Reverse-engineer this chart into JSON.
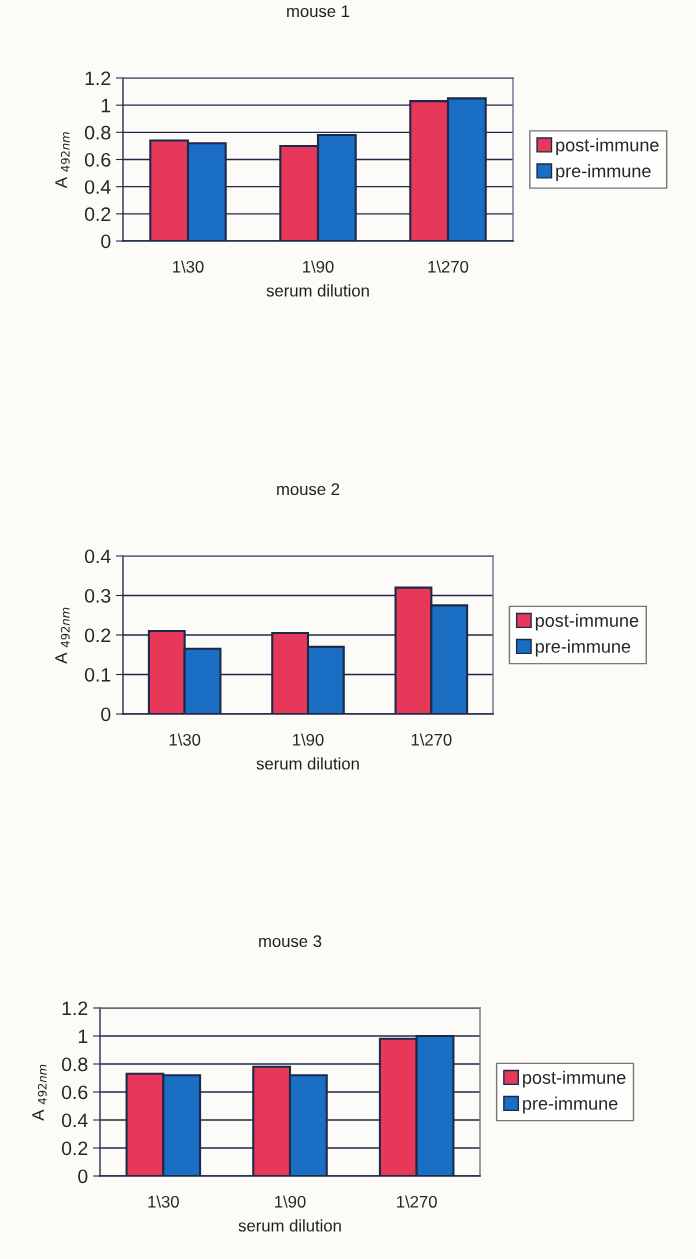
{
  "chart_data": [
    {
      "type": "bar",
      "title": "mouse 1",
      "xlabel": "serum dilution",
      "ylabel": "A $_{492nm}$",
      "categories": [
        "1\\30",
        "1\\90",
        "1\\270"
      ],
      "series": [
        {
          "name": "post-immune",
          "color": "#e8385a",
          "values": [
            0.74,
            0.7,
            1.03
          ]
        },
        {
          "name": "pre-immune",
          "color": "#1a6fc4",
          "values": [
            0.72,
            0.78,
            1.05
          ]
        }
      ],
      "ylim": [
        0,
        1.2
      ],
      "yticks": [
        0,
        0.2,
        0.4,
        0.6,
        0.8,
        1,
        1.2
      ],
      "grid": "y",
      "legend": "right"
    },
    {
      "type": "bar",
      "title": "mouse 2",
      "xlabel": "serum dilution",
      "ylabel": "A $_{492nm}$",
      "categories": [
        "1\\30",
        "1\\90",
        "1\\270"
      ],
      "series": [
        {
          "name": "post-immune",
          "color": "#e8385a",
          "values": [
            0.21,
            0.205,
            0.32
          ]
        },
        {
          "name": "pre-immune",
          "color": "#1a6fc4",
          "values": [
            0.165,
            0.17,
            0.275
          ]
        }
      ],
      "ylim": [
        0,
        0.4
      ],
      "yticks": [
        0,
        0.1,
        0.2,
        0.3,
        0.4
      ],
      "grid": "y",
      "legend": "right"
    },
    {
      "type": "bar",
      "title": "mouse 3",
      "xlabel": "serum dilution",
      "ylabel": "A $_{492nm}$",
      "categories": [
        "1\\30",
        "1\\90",
        "1\\270"
      ],
      "series": [
        {
          "name": "post-immune",
          "color": "#e8385a",
          "values": [
            0.73,
            0.78,
            0.98
          ]
        },
        {
          "name": "pre-immune",
          "color": "#1a6fc4",
          "values": [
            0.72,
            0.72,
            1.0
          ]
        }
      ],
      "ylim": [
        0,
        1.2
      ],
      "yticks": [
        0,
        0.2,
        0.4,
        0.6,
        0.8,
        1,
        1.2
      ],
      "grid": "y",
      "legend": "right"
    }
  ]
}
